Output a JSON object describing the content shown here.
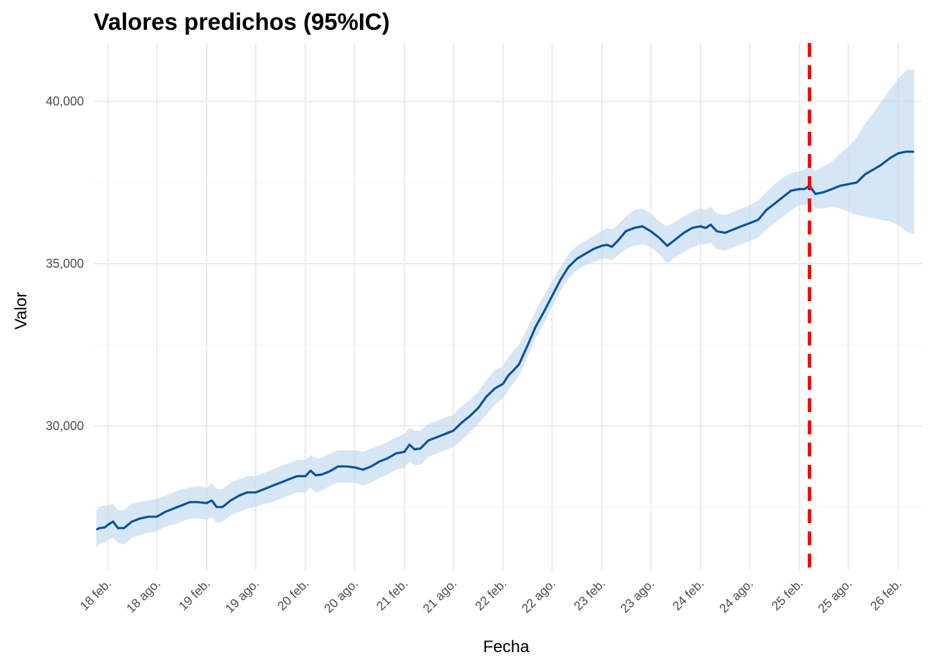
{
  "chart_data": {
    "type": "line",
    "title": "Valores predichos (95%IC)",
    "xlabel": "Fecha",
    "ylabel": "Valor",
    "x_ticks": [
      "18 feb.",
      "18 ago.",
      "19 feb.",
      "19 ago.",
      "20 feb.",
      "20 ago.",
      "21 feb.",
      "21 ago.",
      "22 feb.",
      "22 ago.",
      "23 feb.",
      "23 ago.",
      "24 feb.",
      "24 ago.",
      "25 feb.",
      "25 ago.",
      "26 feb."
    ],
    "x_tick_dates": [
      "2018-02-01",
      "2018-08-01",
      "2019-02-01",
      "2019-08-01",
      "2020-02-01",
      "2020-08-01",
      "2021-02-01",
      "2021-08-01",
      "2022-02-01",
      "2022-08-01",
      "2023-02-01",
      "2023-08-01",
      "2024-02-01",
      "2024-08-01",
      "2025-02-01",
      "2025-08-01",
      "2026-02-01"
    ],
    "y_ticks": [
      30000,
      35000,
      40000
    ],
    "y_tick_labels": [
      "30,000",
      "35,000",
      "40,000"
    ],
    "xlim": [
      "2017-12-10",
      "2026-05-01"
    ],
    "ylim": [
      25550,
      41800
    ],
    "grid": true,
    "colors": {
      "line": "#08519c",
      "band": "#c6dbef",
      "vline": "#ff0000",
      "grid": "#ebebeb"
    },
    "vline": {
      "x": "2025-03-10",
      "style": "dashed"
    },
    "series": [
      {
        "x": [
          "2017-12-20",
          "2018-01-01",
          "2018-01-20",
          "2018-02-01",
          "2018-02-20",
          "2018-03-10",
          "2018-04-01",
          "2018-05-01",
          "2018-06-01",
          "2018-07-01",
          "2018-08-01",
          "2018-09-01",
          "2018-10-01",
          "2018-11-01",
          "2018-12-01",
          "2019-01-01",
          "2019-02-01",
          "2019-02-20",
          "2019-03-10",
          "2019-04-01",
          "2019-05-01",
          "2019-06-01",
          "2019-07-01",
          "2019-08-01",
          "2019-09-01",
          "2019-10-01",
          "2019-11-01",
          "2019-12-01",
          "2020-01-01",
          "2020-02-01",
          "2020-02-20",
          "2020-03-10",
          "2020-04-01",
          "2020-05-01",
          "2020-06-01",
          "2020-07-01",
          "2020-08-01",
          "2020-09-01",
          "2020-10-01",
          "2020-11-01",
          "2020-12-01",
          "2021-01-01",
          "2021-02-01",
          "2021-02-20",
          "2021-03-10",
          "2021-04-01",
          "2021-05-01",
          "2021-06-01",
          "2021-07-01",
          "2021-08-01",
          "2021-09-01",
          "2021-10-01",
          "2021-11-01",
          "2021-12-01",
          "2022-01-01",
          "2022-02-01",
          "2022-02-20",
          "2022-03-10",
          "2022-04-01",
          "2022-05-01",
          "2022-06-01",
          "2022-07-01",
          "2022-08-01",
          "2022-09-01",
          "2022-10-01",
          "2022-11-01",
          "2022-12-01",
          "2023-01-01",
          "2023-02-01",
          "2023-02-20",
          "2023-03-10",
          "2023-04-01",
          "2023-05-01",
          "2023-06-01",
          "2023-07-01",
          "2023-08-01",
          "2023-09-01",
          "2023-10-01",
          "2023-11-01",
          "2023-12-01",
          "2024-01-01",
          "2024-02-01",
          "2024-02-20",
          "2024-03-10",
          "2024-04-01",
          "2024-05-01",
          "2024-06-01",
          "2024-07-01",
          "2024-08-01",
          "2024-09-01",
          "2024-10-01",
          "2024-11-01",
          "2024-12-01",
          "2025-01-01",
          "2025-02-01",
          "2025-02-20",
          "2025-03-10",
          "2025-04-01",
          "2025-05-01",
          "2025-06-01",
          "2025-07-01",
          "2025-08-01",
          "2025-09-01",
          "2025-10-01",
          "2025-11-01",
          "2025-12-01",
          "2026-01-01",
          "2026-02-01",
          "2026-03-01",
          "2026-04-01"
        ],
        "y": [
          26800,
          26850,
          26870,
          26950,
          27050,
          26850,
          26850,
          27050,
          27150,
          27200,
          27200,
          27350,
          27450,
          27550,
          27650,
          27650,
          27620,
          27700,
          27500,
          27500,
          27700,
          27850,
          27950,
          27950,
          28050,
          28150,
          28250,
          28350,
          28450,
          28450,
          28620,
          28480,
          28500,
          28600,
          28750,
          28750,
          28720,
          28650,
          28750,
          28900,
          29000,
          29150,
          29200,
          29420,
          29280,
          29300,
          29550,
          29650,
          29750,
          29850,
          30100,
          30300,
          30550,
          30900,
          31150,
          31300,
          31550,
          31700,
          31900,
          32450,
          33050,
          33500,
          34000,
          34500,
          34900,
          35150,
          35300,
          35450,
          35550,
          35580,
          35520,
          35700,
          36000,
          36100,
          36150,
          36000,
          35800,
          35550,
          35750,
          35950,
          36100,
          36150,
          36100,
          36200,
          36000,
          35950,
          36050,
          36150,
          36250,
          36350,
          36650,
          36850,
          37050,
          37250,
          37300,
          37300,
          37400,
          37150,
          37200,
          37300,
          37400,
          37450,
          37500,
          37750,
          37900,
          38050,
          38250,
          38400,
          38450,
          38450
        ],
        "lower": [
          26250,
          26350,
          26400,
          26500,
          26550,
          26400,
          26350,
          26550,
          26650,
          26700,
          26750,
          26900,
          26950,
          27050,
          27150,
          27150,
          27100,
          27200,
          27000,
          27050,
          27250,
          27350,
          27450,
          27500,
          27600,
          27650,
          27750,
          27850,
          27950,
          27950,
          28100,
          27950,
          28000,
          28150,
          28250,
          28250,
          28250,
          28150,
          28250,
          28400,
          28500,
          28650,
          28700,
          28900,
          28800,
          28800,
          29050,
          29150,
          29250,
          29350,
          29550,
          29800,
          30050,
          30350,
          30650,
          30850,
          31100,
          31300,
          31550,
          32100,
          32700,
          33150,
          33650,
          34150,
          34550,
          34800,
          34950,
          35050,
          35150,
          35150,
          35100,
          35250,
          35450,
          35550,
          35600,
          35500,
          35300,
          35000,
          35200,
          35350,
          35500,
          35600,
          35600,
          35650,
          35450,
          35400,
          35500,
          35600,
          35700,
          35800,
          36050,
          36250,
          36450,
          36650,
          36800,
          36800,
          36850,
          36700,
          36700,
          36750,
          36700,
          36600,
          36500,
          36450,
          36400,
          36350,
          36300,
          36200,
          36000,
          35900
        ],
        "upper": [
          27400,
          27500,
          27550,
          27550,
          27600,
          27400,
          27400,
          27600,
          27650,
          27700,
          27750,
          27850,
          27950,
          28050,
          28100,
          28150,
          28100,
          28250,
          28050,
          28050,
          28250,
          28350,
          28450,
          28450,
          28550,
          28650,
          28750,
          28850,
          28950,
          28950,
          29100,
          29000,
          29000,
          29150,
          29250,
          29250,
          29250,
          29200,
          29300,
          29400,
          29500,
          29650,
          29750,
          29950,
          29850,
          29850,
          30050,
          30150,
          30250,
          30350,
          30600,
          30800,
          31050,
          31400,
          31700,
          31850,
          32100,
          32300,
          32500,
          33000,
          33550,
          34000,
          34450,
          34900,
          35300,
          35550,
          35700,
          35850,
          36000,
          36100,
          36050,
          36200,
          36450,
          36650,
          36700,
          36550,
          36300,
          36150,
          36300,
          36450,
          36600,
          36700,
          36650,
          36750,
          36550,
          36500,
          36600,
          36700,
          36800,
          36950,
          37200,
          37450,
          37650,
          37800,
          37850,
          37900,
          38000,
          37850,
          38000,
          38150,
          38400,
          38600,
          38900,
          39300,
          39650,
          40000,
          40350,
          40700,
          40950,
          41000
        ]
      }
    ]
  }
}
